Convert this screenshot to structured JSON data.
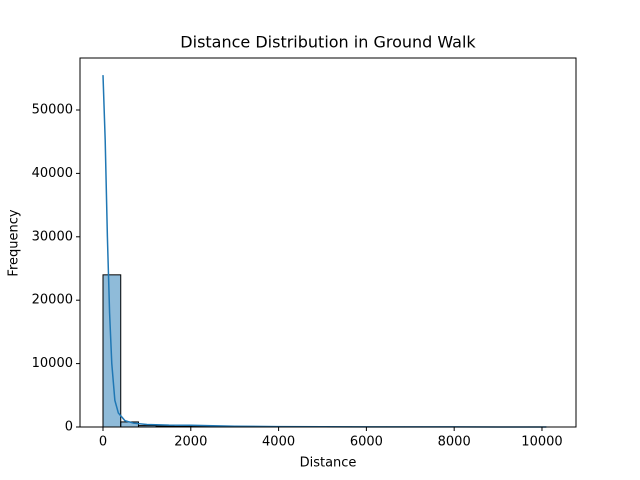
{
  "chart_data": {
    "type": "histogram",
    "title": "Distance Distribution in Ground Walk",
    "xlabel": "Distance",
    "ylabel": "Frequency",
    "bins": [
      0,
      404,
      808,
      1212,
      1616,
      2020,
      2424,
      2828,
      3232,
      3636,
      4040,
      4444,
      4848,
      5252,
      5656,
      6060,
      6464,
      6868,
      7272,
      7676,
      8080,
      8484,
      8888,
      9292,
      9696,
      10100
    ],
    "counts": [
      24000,
      800,
      220,
      150,
      110,
      70,
      50,
      40,
      30,
      25,
      20,
      15,
      12,
      10,
      8,
      6,
      5,
      4,
      3,
      3,
      2,
      2,
      1,
      1,
      2
    ],
    "color": "#1f77b4",
    "kde": {
      "color": "#1f77b4",
      "x": [
        0,
        50,
        100,
        150,
        200,
        270,
        350,
        500,
        700,
        1000,
        1500,
        2000,
        2500,
        3000,
        4000,
        5000,
        6000,
        7000,
        8000,
        9000,
        10100
      ],
      "y": [
        55500,
        45200,
        30000,
        18000,
        10000,
        4200,
        2200,
        1000,
        600,
        400,
        300,
        280,
        200,
        120,
        60,
        40,
        25,
        15,
        10,
        8,
        5
      ]
    },
    "xlim": [
      -524,
      10775
    ],
    "ylim": [
      0,
      58200
    ],
    "xticks": [
      0,
      2000,
      4000,
      6000,
      8000,
      10000
    ],
    "yticks": [
      0,
      10000,
      20000,
      30000,
      40000,
      50000
    ]
  }
}
